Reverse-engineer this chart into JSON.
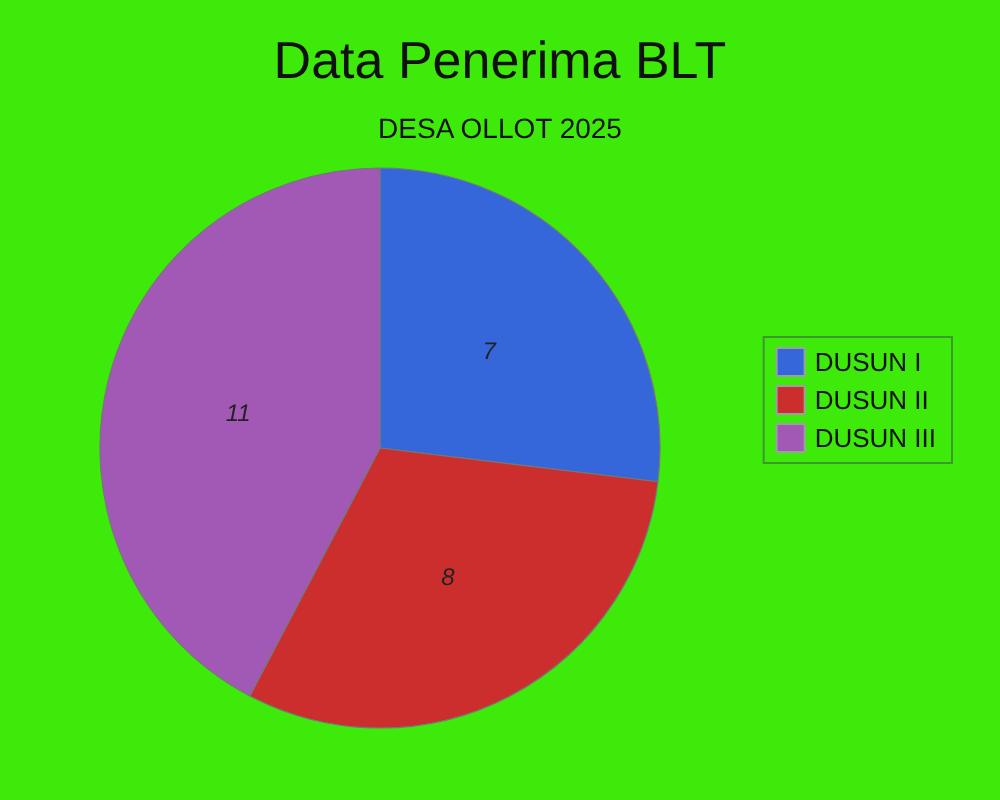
{
  "chart_data": {
    "type": "pie",
    "title": "Data Penerima BLT",
    "subtitle": "DESA OLLOT 2025",
    "categories": [
      "DUSUN I",
      "DUSUN II",
      "DUSUN III"
    ],
    "values": [
      7,
      8,
      11
    ],
    "colors": [
      "#3567db",
      "#cc2e2e",
      "#a259b5"
    ],
    "data_labels": true,
    "legend": "right"
  }
}
